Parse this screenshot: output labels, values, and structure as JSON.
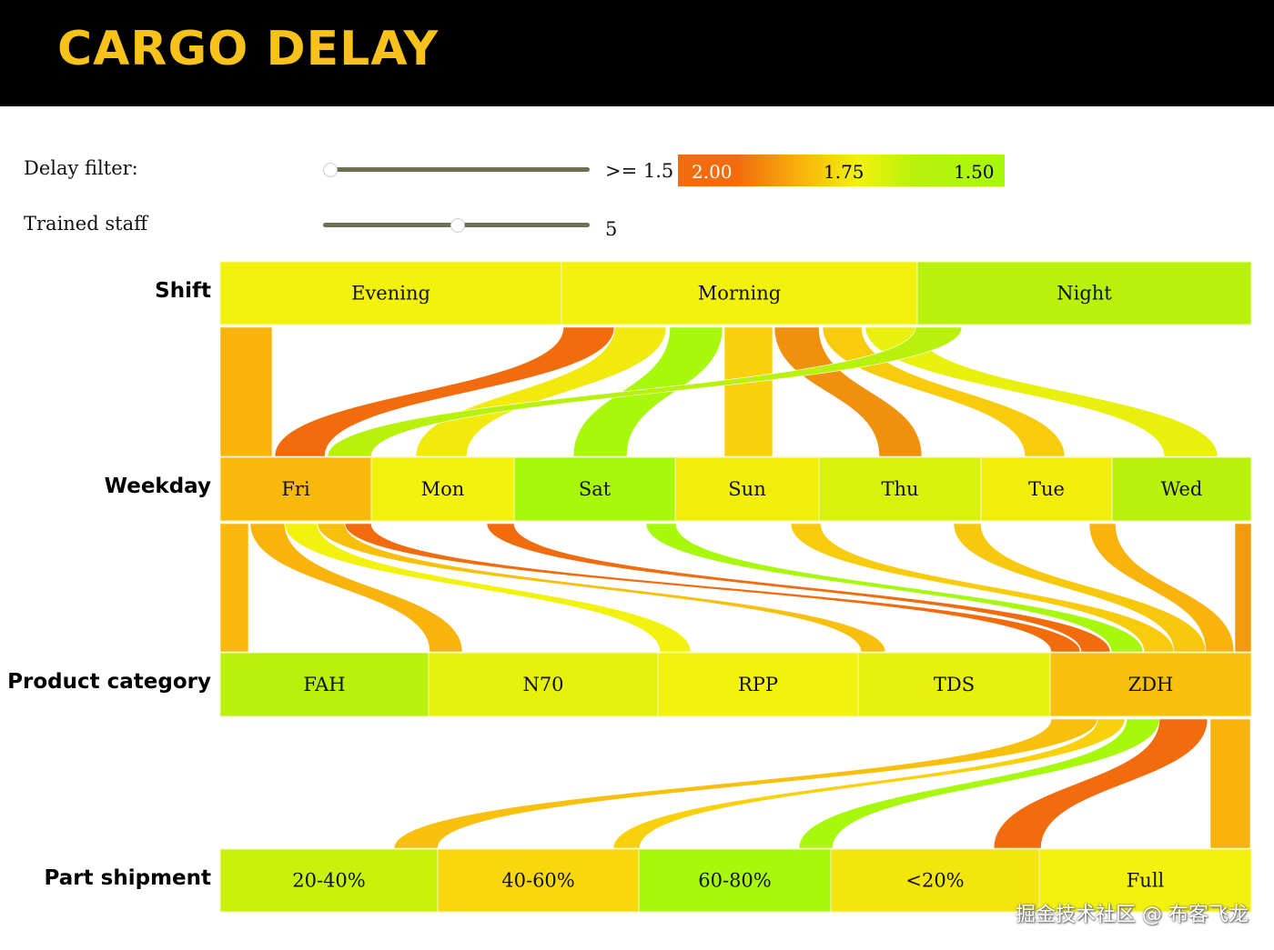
{
  "header": {
    "title": "CARGO DELAY"
  },
  "controls": {
    "delay_filter": {
      "label": "Delay filter:",
      "value_text": ">= 1.5",
      "slider_fraction": 0.0
    },
    "trained_staff": {
      "label": "Trained staff",
      "value_text": "5",
      "slider_fraction": 0.5
    },
    "color_legend": {
      "labels": [
        "2.00",
        "1.75",
        "1.50"
      ],
      "colors": [
        "#f26b0c",
        "#f8b40c",
        "#f2f20c",
        "#a8f80c"
      ]
    }
  },
  "chart_data": {
    "type": "parallel-sets",
    "dimensions": [
      {
        "name": "Shift",
        "categories": [
          {
            "label": "Evening",
            "color": "#f2f20c"
          },
          {
            "label": "Morning",
            "color": "#f2f20c"
          },
          {
            "label": "Night",
            "color": "#b8f20c"
          }
        ]
      },
      {
        "name": "Weekday",
        "categories": [
          {
            "label": "Fri",
            "color": "#f8b80c"
          },
          {
            "label": "Mon",
            "color": "#f2f20c"
          },
          {
            "label": "Sat",
            "color": "#a8f80c"
          },
          {
            "label": "Sun",
            "color": "#f2ee0c"
          },
          {
            "label": "Thu",
            "color": "#d8f20c"
          },
          {
            "label": "Tue",
            "color": "#f2ee0c"
          },
          {
            "label": "Wed",
            "color": "#b8f20c"
          }
        ]
      },
      {
        "name": "Product category",
        "categories": [
          {
            "label": "FAH",
            "color": "#b8f20c"
          },
          {
            "label": "N70",
            "color": "#e6f20c"
          },
          {
            "label": "RPP",
            "color": "#f2f20c"
          },
          {
            "label": "TDS",
            "color": "#e6f20c"
          },
          {
            "label": "ZDH",
            "color": "#f8c00c"
          }
        ]
      },
      {
        "name": "Part shipment",
        "categories": [
          {
            "label": "20-40%",
            "color": "#c8f20c"
          },
          {
            "label": "40-60%",
            "color": "#f8d80c"
          },
          {
            "label": "60-80%",
            "color": "#a8f80c"
          },
          {
            "label": "<20%",
            "color": "#f2e60c"
          },
          {
            "label": "Full",
            "color": "#f2f20c"
          }
        ]
      }
    ],
    "links": [
      {
        "from": "Evening",
        "to": "Fri",
        "color": "#f8b40c"
      },
      {
        "from": "Morning",
        "to": "Fri",
        "color": "#f26b0c"
      },
      {
        "from": "Morning",
        "to": "Mon",
        "color": "#f2ea0c"
      },
      {
        "from": "Morning",
        "to": "Sat",
        "color": "#a8f80c"
      },
      {
        "from": "Morning",
        "to": "Sun",
        "color": "#f8d00c"
      },
      {
        "from": "Morning",
        "to": "Thu",
        "color": "#f0900c"
      },
      {
        "from": "Morning",
        "to": "Tue",
        "color": "#f8cc0c"
      },
      {
        "from": "Morning",
        "to": "Wed",
        "color": "#e8f00c"
      },
      {
        "from": "Night",
        "to": "Fri",
        "color": "#b8f20c"
      },
      {
        "from": "Fri",
        "to": "FAH",
        "color": "#f8b80c"
      },
      {
        "from": "Fri",
        "to": "N70",
        "color": "#f8b40c"
      },
      {
        "from": "Fri",
        "to": "RPP",
        "color": "#f2f20c"
      },
      {
        "from": "Fri",
        "to": "TDS",
        "color": "#f8c00c"
      },
      {
        "from": "Fri",
        "to": "ZDH",
        "color": "#f26b0c"
      },
      {
        "from": "Mon",
        "to": "ZDH",
        "color": "#f26b0c"
      },
      {
        "from": "Sat",
        "to": "ZDH",
        "color": "#a8f80c"
      },
      {
        "from": "Sun",
        "to": "ZDH",
        "color": "#f8cc0c"
      },
      {
        "from": "Thu",
        "to": "ZDH",
        "color": "#f8c80c"
      },
      {
        "from": "Wed",
        "to": "ZDH",
        "color": "#f8b40c"
      },
      {
        "from": "Wed",
        "to": "ZDH",
        "color": "#f29a0c"
      },
      {
        "from": "ZDH",
        "to": "20-40%",
        "color": "#f8c00c"
      },
      {
        "from": "ZDH",
        "to": "40-60%",
        "color": "#f8d00c"
      },
      {
        "from": "ZDH",
        "to": "60-80%",
        "color": "#a8f80c"
      },
      {
        "from": "ZDH",
        "to": "<20%",
        "color": "#f26b0c"
      },
      {
        "from": "ZDH",
        "to": "Full",
        "color": "#f8b40c"
      }
    ]
  },
  "watermark": "掘金技术社区 @ 布客飞龙"
}
